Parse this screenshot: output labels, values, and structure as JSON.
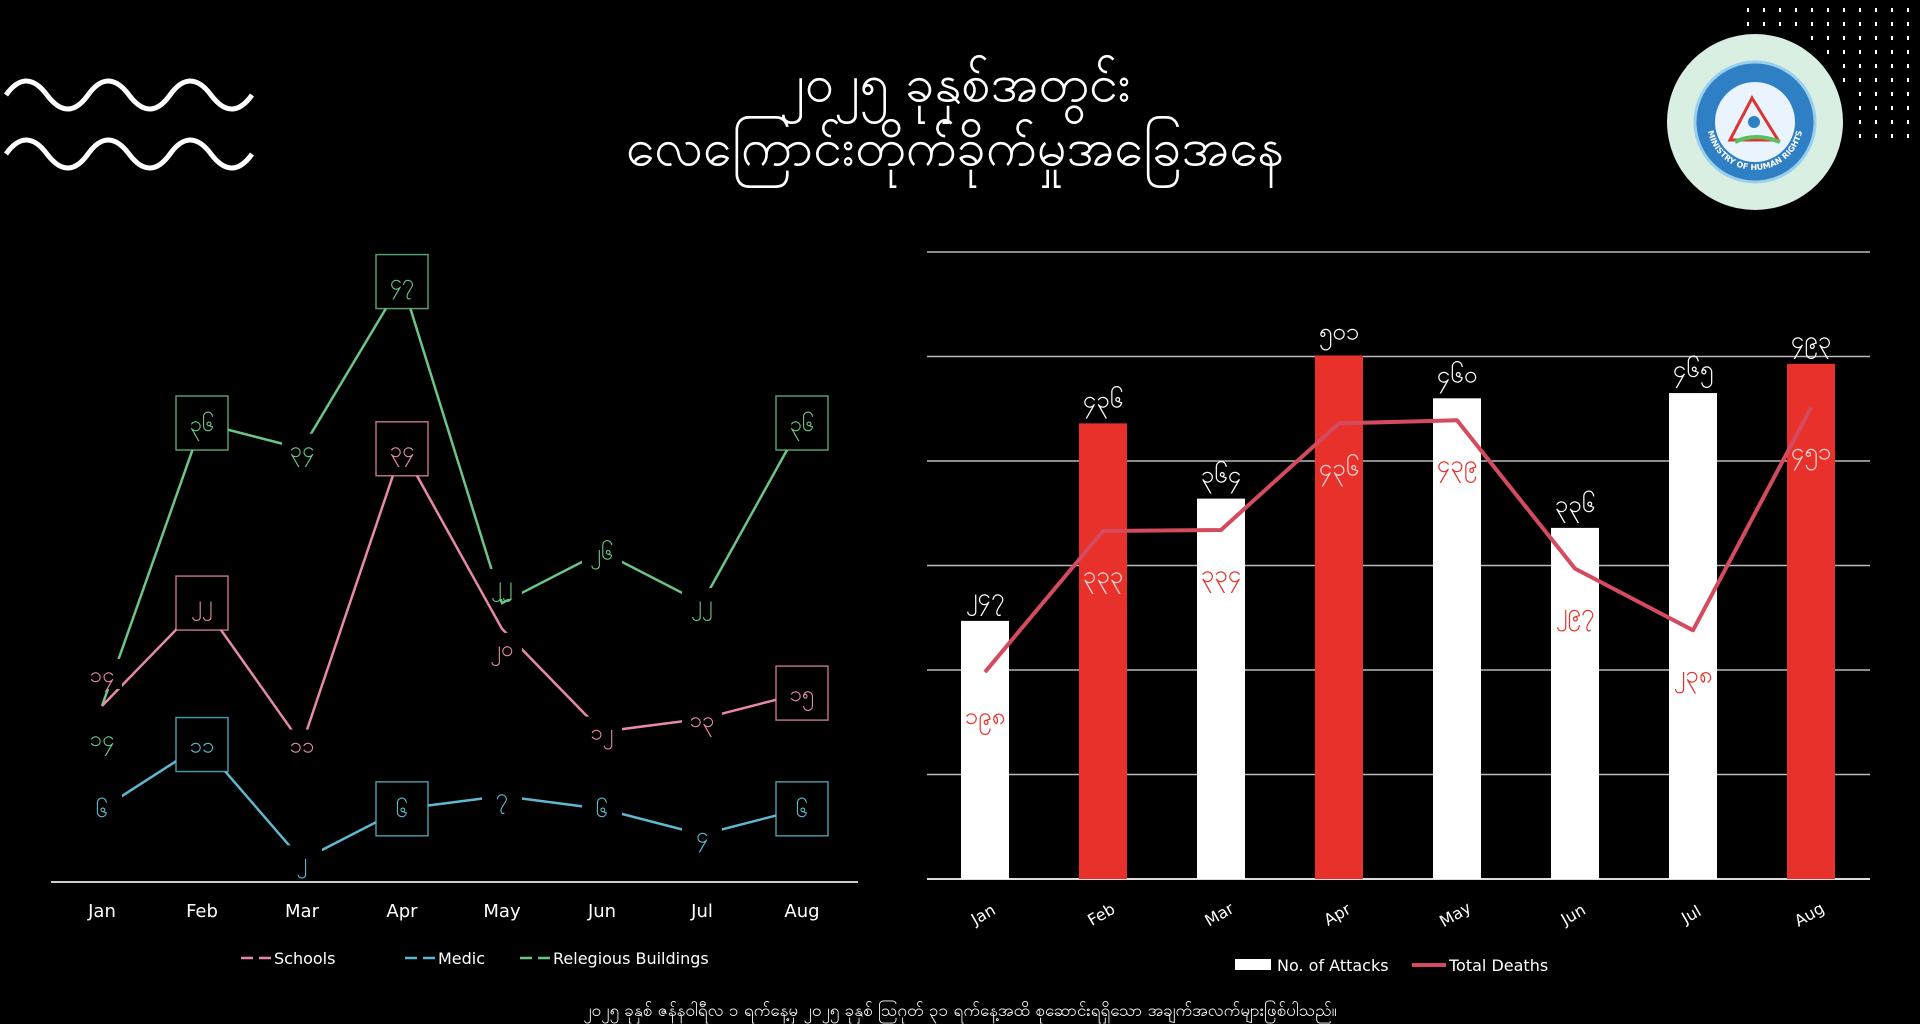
{
  "header": {
    "title_line1": "၂၀၂၅ ခုနှစ်အတွင်း",
    "title_line2": "လေကြောင်းတိုက်ခိုက်မှုအခြေအနေ",
    "logo_text": "MINISTRY OF HUMAN RIGHTS"
  },
  "footnote": "၂၀၂၅ ခုနှစ် ဇန်နဝါရီလ ၁ ရက်နေ့မှ ၂၀၂၅ ခုနှစ် ဩဂုတ် ၃၁ ရက်နေ့အထိ စုဆောင်းရရှိသော အချက်အလက်များဖြစ်ပါသည်။",
  "colors": {
    "background": "#000000",
    "schools": "#e58aa8",
    "medic": "#5fb8d0",
    "religious": "#6cc487",
    "attacks_white": "#ffffff",
    "attacks_red": "#e8312a",
    "deaths_line": "#d44a5e",
    "logo_ring": "#d8efe2",
    "logo_blue": "#2f7fc4"
  },
  "chart_data": [
    {
      "type": "line",
      "categories": [
        "Jan",
        "Feb",
        "Mar",
        "Apr",
        "May",
        "Jun",
        "Jul",
        "Aug"
      ],
      "ylim": [
        0,
        50
      ],
      "grid": false,
      "legend": "bottom",
      "label_digits": "myanmar",
      "series": [
        {
          "name": "Schools",
          "values": [
            14,
            22,
            11,
            34,
            20,
            12,
            13,
            15
          ],
          "boxed": [
            "Feb",
            "Apr",
            "Aug"
          ]
        },
        {
          "name": "Medic",
          "values": [
            6,
            11,
            2,
            6,
            7,
            6,
            4,
            6
          ],
          "boxed": [
            "Feb",
            "Apr",
            "Aug"
          ]
        },
        {
          "name": "Relegious Buildings",
          "values": [
            14,
            36,
            34,
            47,
            22,
            26,
            22,
            36
          ],
          "boxed": [
            "Feb",
            "Apr",
            "Aug"
          ]
        }
      ]
    },
    {
      "type": "bar",
      "categories": [
        "Jan",
        "Feb",
        "Mar",
        "Apr",
        "May",
        "Jun",
        "Jul",
        "Aug"
      ],
      "ylim": [
        0,
        600
      ],
      "grid": true,
      "legend": "bottom",
      "label_digits": "myanmar",
      "series": [
        {
          "name": "No. of Attacks",
          "type": "bar",
          "values": [
            247,
            436,
            364,
            501,
            460,
            336,
            465,
            493
          ],
          "bar_colors": [
            "white",
            "red",
            "white",
            "red",
            "white",
            "white",
            "white",
            "red"
          ]
        },
        {
          "name": "Total Deaths",
          "type": "line",
          "values": [
            198,
            333,
            334,
            436,
            439,
            297,
            238,
            451
          ]
        }
      ]
    }
  ]
}
